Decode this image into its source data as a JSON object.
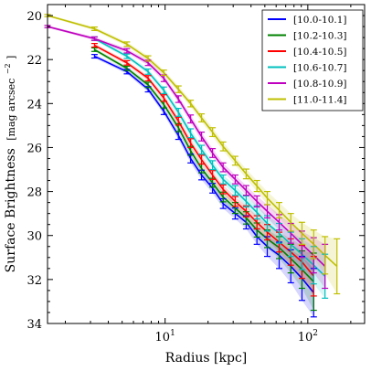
{
  "chart_data": {
    "type": "line",
    "xlabel": "Radius [kpc]",
    "ylabel": "Surface Brightness",
    "ylabel_unit": "[mag arcsec",
    "ylabel_unit_exp": "−2",
    "ylabel_unit_close": "]",
    "x_scale": "log",
    "xlim": [
      1.5,
      250
    ],
    "ylim": [
      34,
      19.5
    ],
    "y_inverted": true,
    "x_ticks": [
      {
        "value": 10,
        "base": "10",
        "exp": "1"
      },
      {
        "value": 100,
        "base": "10",
        "exp": "2"
      }
    ],
    "y_ticks": [
      20,
      22,
      24,
      26,
      28,
      30,
      32,
      34
    ],
    "grid": false,
    "legend_position": "top-right",
    "series": [
      {
        "name": "[10.0-10.1]",
        "color": "#0000ff",
        "x": [
          3.2,
          5.4,
          7.6,
          9.8,
          12.4,
          15.1,
          18.0,
          21.5,
          25.5,
          31,
          37,
          44,
          52,
          63,
          76,
          91,
          110
        ],
        "y": [
          21.85,
          22.55,
          23.35,
          24.35,
          25.45,
          26.5,
          27.25,
          27.85,
          28.55,
          29.0,
          29.4,
          30.05,
          30.5,
          30.9,
          31.4,
          31.95,
          32.6
        ],
        "err": [
          0.08,
          0.1,
          0.12,
          0.15,
          0.18,
          0.2,
          0.22,
          0.22,
          0.22,
          0.25,
          0.3,
          0.35,
          0.45,
          0.6,
          0.75,
          1.0,
          1.1
        ]
      },
      {
        "name": "[10.2-10.3]",
        "color": "#008000",
        "x": [
          3.2,
          5.4,
          7.6,
          9.8,
          12.4,
          15.1,
          18.0,
          21.5,
          25.5,
          31,
          37,
          44,
          52,
          63,
          76,
          91,
          110
        ],
        "y": [
          21.55,
          22.4,
          23.15,
          24.05,
          25.1,
          26.15,
          26.95,
          27.6,
          28.25,
          28.75,
          29.2,
          29.75,
          30.15,
          30.55,
          31.05,
          31.55,
          32.1
        ],
        "err": [
          0.08,
          0.1,
          0.12,
          0.15,
          0.18,
          0.2,
          0.2,
          0.2,
          0.22,
          0.25,
          0.28,
          0.32,
          0.4,
          0.5,
          0.65,
          0.85,
          1.3
        ]
      },
      {
        "name": "[10.4-10.5]",
        "color": "#ff0000",
        "x": [
          3.2,
          5.4,
          7.6,
          9.8,
          12.4,
          15.1,
          18.0,
          21.5,
          25.5,
          31,
          37,
          44,
          52,
          63,
          76,
          91,
          110
        ],
        "y": [
          21.35,
          22.15,
          22.85,
          23.75,
          24.8,
          25.8,
          26.55,
          27.25,
          27.9,
          28.45,
          28.9,
          29.4,
          29.85,
          30.3,
          30.75,
          31.2,
          31.85
        ],
        "err": [
          0.08,
          0.1,
          0.12,
          0.15,
          0.18,
          0.2,
          0.2,
          0.2,
          0.2,
          0.22,
          0.25,
          0.3,
          0.35,
          0.45,
          0.6,
          0.75,
          0.9
        ]
      },
      {
        "name": "[10.6-10.7]",
        "color": "#00bfbf",
        "x": [
          3.2,
          5.4,
          7.6,
          9.8,
          12.4,
          15.1,
          18.0,
          21.5,
          25.5,
          31,
          37,
          44,
          52,
          63,
          76,
          91,
          110,
          132
        ],
        "y": [
          21.05,
          21.85,
          22.55,
          23.4,
          24.4,
          25.35,
          26.1,
          26.8,
          27.45,
          27.95,
          28.45,
          28.95,
          29.45,
          29.9,
          30.4,
          30.85,
          31.35,
          31.85
        ],
        "err": [
          0.08,
          0.1,
          0.12,
          0.15,
          0.18,
          0.2,
          0.2,
          0.2,
          0.2,
          0.22,
          0.25,
          0.3,
          0.35,
          0.45,
          0.55,
          0.7,
          0.85,
          1.0
        ]
      },
      {
        "name": "[10.8-10.9]",
        "color": "#bf00bf",
        "x": [
          1.5,
          3.2,
          5.4,
          7.6,
          9.8,
          12.4,
          15.1,
          18.0,
          21.5,
          25.5,
          31,
          37,
          44,
          52,
          63,
          76,
          91,
          110,
          132
        ],
        "y": [
          20.5,
          21.05,
          21.6,
          22.15,
          22.85,
          23.8,
          24.7,
          25.5,
          26.25,
          26.9,
          27.45,
          27.95,
          28.45,
          28.9,
          29.4,
          29.9,
          30.4,
          30.9,
          31.4
        ],
        "err": [
          0.05,
          0.08,
          0.1,
          0.12,
          0.15,
          0.15,
          0.18,
          0.2,
          0.2,
          0.2,
          0.2,
          0.22,
          0.25,
          0.3,
          0.35,
          0.45,
          0.6,
          0.8,
          1.0
        ]
      },
      {
        "name": "[11.0-11.4]",
        "color": "#bfbf00",
        "x": [
          1.5,
          3.2,
          5.4,
          7.6,
          9.8,
          12.4,
          15.1,
          18.0,
          21.5,
          25.5,
          31,
          37,
          44,
          52,
          63,
          76,
          91,
          110,
          132,
          160
        ],
        "y": [
          20.0,
          20.6,
          21.3,
          21.95,
          22.6,
          23.35,
          24.0,
          24.65,
          25.3,
          25.95,
          26.6,
          27.2,
          27.75,
          28.3,
          28.85,
          29.4,
          29.9,
          30.4,
          30.9,
          31.4
        ],
        "err": [
          0.05,
          0.08,
          0.1,
          0.12,
          0.12,
          0.15,
          0.15,
          0.18,
          0.2,
          0.2,
          0.2,
          0.22,
          0.25,
          0.3,
          0.35,
          0.4,
          0.5,
          0.65,
          0.85,
          1.25
        ]
      }
    ]
  }
}
